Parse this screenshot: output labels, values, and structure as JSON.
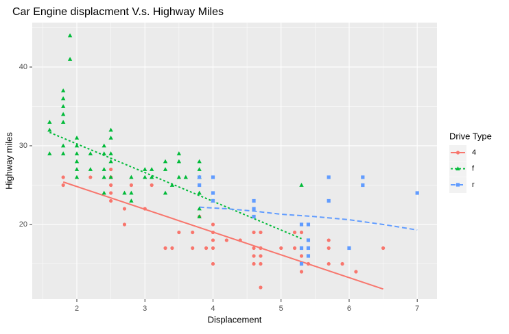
{
  "chart_data": {
    "type": "scatter",
    "title": "Car Engine displacment V.s. Highway Miles",
    "x_label": "Displacement",
    "y_label": "Highway miles",
    "legend_title": "Drive Type",
    "legend_position": "right",
    "grid": true,
    "xlim": [
      1.345,
      7.29
    ],
    "ylim": [
      10.52,
      45.65
    ],
    "xticks": [
      2,
      3,
      4,
      5,
      6,
      7
    ],
    "yticks": [
      20,
      30,
      40
    ],
    "x_minor_ticks": [
      1.5,
      2.5,
      3.5,
      4.5,
      5.5,
      6.5
    ],
    "y_minor_ticks": [
      15,
      25,
      35,
      45
    ],
    "series": [
      {
        "name": "4",
        "color": "#f8766d",
        "shape": "circle",
        "line_style": "solid",
        "x": [
          1.8,
          1.8,
          2.2,
          2.5,
          2.5,
          2.5,
          2.5,
          2.5,
          2.7,
          2.7,
          2.8,
          3.0,
          3.1,
          3.3,
          3.4,
          3.5,
          3.7,
          3.7,
          3.8,
          3.9,
          4.0,
          4.0,
          4.0,
          4.0,
          4.0,
          4.2,
          4.4,
          4.6,
          4.6,
          4.6,
          4.6,
          4.7,
          4.7,
          4.7,
          4.7,
          4.7,
          5.0,
          5.2,
          5.2,
          5.3,
          5.3,
          5.3,
          5.4,
          5.7,
          5.7,
          5.7,
          5.9,
          6.1,
          6.5
        ],
        "values": [
          26,
          25,
          26,
          27,
          26,
          25,
          24,
          23,
          22,
          20,
          25,
          22,
          25,
          17,
          17,
          19,
          19,
          17,
          21,
          17,
          20,
          19,
          18,
          17,
          15,
          18,
          18,
          19,
          17,
          16,
          15,
          19,
          17,
          16,
          15,
          12,
          17,
          17,
          19,
          19,
          16,
          14,
          15,
          18,
          17,
          15,
          15,
          14,
          17
        ],
        "fit": {
          "x": [
            1.8,
            6.5
          ],
          "values": [
            25.4,
            11.8
          ]
        }
      },
      {
        "name": "f",
        "color": "#00ba38",
        "shape": "triangle",
        "line_style": "dotted",
        "x": [
          1.6,
          1.6,
          1.6,
          1.8,
          1.8,
          1.8,
          1.8,
          1.8,
          1.8,
          1.8,
          1.9,
          1.9,
          2.0,
          2.0,
          2.0,
          2.0,
          2.0,
          2.0,
          2.2,
          2.2,
          2.4,
          2.4,
          2.4,
          2.4,
          2.4,
          2.5,
          2.5,
          2.5,
          2.5,
          2.5,
          2.7,
          2.8,
          2.8,
          2.8,
          3.0,
          3.0,
          3.1,
          3.1,
          3.3,
          3.3,
          3.3,
          3.4,
          3.5,
          3.5,
          3.5,
          3.6,
          3.8,
          3.8,
          3.8,
          3.8,
          3.8,
          3.8,
          4.0,
          5.3
        ],
        "values": [
          33,
          32,
          29,
          37,
          36,
          35,
          34,
          33,
          30,
          29,
          44,
          41,
          31,
          30,
          29,
          28,
          27,
          26,
          27,
          29,
          30,
          29,
          27,
          26,
          24,
          32,
          31,
          29,
          28,
          26,
          24,
          26,
          24,
          23,
          27,
          26,
          27,
          26,
          28,
          27,
          24,
          25,
          29,
          28,
          26,
          26,
          28,
          27,
          26,
          24,
          22,
          21,
          23,
          25
        ],
        "fit": {
          "x": [
            1.6,
            5.3
          ],
          "values": [
            31.7,
            18.2
          ]
        }
      },
      {
        "name": "r",
        "color": "#619cff",
        "shape": "square",
        "line_style": "dashed",
        "x": [
          3.8,
          3.8,
          4.0,
          4.0,
          4.0,
          4.6,
          4.6,
          4.6,
          5.3,
          5.3,
          5.3,
          5.4,
          5.4,
          5.4,
          5.4,
          5.7,
          5.7,
          6.0,
          6.2,
          6.2,
          7.0
        ],
        "values": [
          26,
          25,
          26,
          24,
          23,
          23,
          22,
          21,
          20,
          17,
          15,
          20,
          18,
          17,
          16,
          26,
          23,
          17,
          26,
          25,
          24
        ],
        "fit": {
          "x": [
            3.8,
            4.2,
            4.6,
            5.0,
            5.5,
            6.0,
            6.5,
            7.0
          ],
          "values": [
            22.2,
            22.0,
            21.7,
            21.3,
            21.0,
            20.6,
            20.0,
            19.3
          ]
        }
      }
    ]
  }
}
